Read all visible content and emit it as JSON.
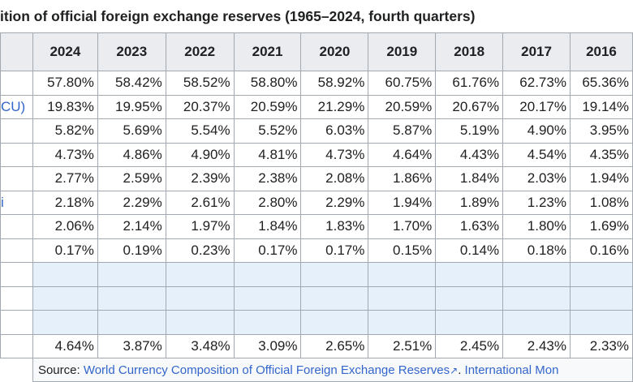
{
  "caption": "ition of official foreign exchange reserves (1965–2024, fourth quarters)",
  "years": [
    "2024",
    "2023",
    "2022",
    "2021",
    "2020",
    "2019",
    "2018",
    "2017",
    "2016"
  ],
  "rows": [
    {
      "label": "",
      "values": [
        "57.80%",
        "58.42%",
        "58.52%",
        "58.80%",
        "58.92%",
        "60.75%",
        "61.76%",
        "62.73%",
        "65.36%"
      ]
    },
    {
      "label": "CU)",
      "values": [
        "19.83%",
        "19.95%",
        "20.37%",
        "20.59%",
        "21.29%",
        "20.59%",
        "20.67%",
        "20.17%",
        "19.14%"
      ]
    },
    {
      "label": "",
      "values": [
        "5.82%",
        "5.69%",
        "5.54%",
        "5.52%",
        "6.03%",
        "5.87%",
        "5.19%",
        "4.90%",
        "3.95%"
      ]
    },
    {
      "label": "",
      "values": [
        "4.73%",
        "4.86%",
        "4.90%",
        "4.81%",
        "4.73%",
        "4.64%",
        "4.43%",
        "4.54%",
        "4.35%"
      ]
    },
    {
      "label": "",
      "values": [
        "2.77%",
        "2.59%",
        "2.39%",
        "2.38%",
        "2.08%",
        "1.86%",
        "1.84%",
        "2.03%",
        "1.94%"
      ]
    },
    {
      "label": "i",
      "values": [
        "2.18%",
        "2.29%",
        "2.61%",
        "2.80%",
        "2.29%",
        "1.94%",
        "1.89%",
        "1.23%",
        "1.08%"
      ]
    },
    {
      "label": "",
      "values": [
        "2.06%",
        "2.14%",
        "1.97%",
        "1.84%",
        "1.83%",
        "1.70%",
        "1.63%",
        "1.80%",
        "1.69%"
      ]
    },
    {
      "label": "",
      "values": [
        "0.17%",
        "0.19%",
        "0.23%",
        "0.17%",
        "0.17%",
        "0.15%",
        "0.14%",
        "0.18%",
        "0.16%"
      ]
    },
    {
      "label": "",
      "empty": true,
      "values": [
        "",
        "",
        "",
        "",
        "",
        "",
        "",
        "",
        ""
      ]
    },
    {
      "label": "",
      "empty": true,
      "values": [
        "",
        "",
        "",
        "",
        "",
        "",
        "",
        "",
        ""
      ]
    },
    {
      "label": "",
      "empty": true,
      "values": [
        "",
        "",
        "",
        "",
        "",
        "",
        "",
        "",
        ""
      ]
    },
    {
      "label": "",
      "values": [
        "4.64%",
        "3.87%",
        "3.48%",
        "3.09%",
        "2.65%",
        "2.51%",
        "2.45%",
        "2.43%",
        "2.33%"
      ]
    }
  ],
  "source": {
    "prefix": "Source: ",
    "link1": "World Currency Composition of Official Foreign Exchange Reserves",
    "link1_icon": "external-link-icon",
    "separator": ". ",
    "link2": "International Mon"
  }
}
